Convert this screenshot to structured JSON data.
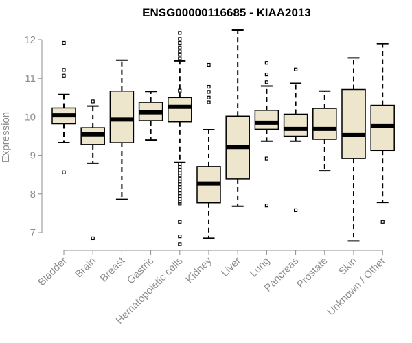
{
  "chart_data": {
    "type": "boxplot",
    "title": "ENSG00000116685 - KIAA2013",
    "xlabel": "",
    "ylabel": "Expression",
    "ylim": [
      6.6,
      12.35
    ],
    "yticks": [
      7,
      8,
      9,
      10,
      11,
      12
    ],
    "categories": [
      "Bladder",
      "Brain",
      "Breast",
      "Gastric",
      "Hematopoietic cells",
      "Kidney",
      "Liver",
      "Lung",
      "Pancreas",
      "Prostate",
      "Skin",
      "Unknown / Other"
    ],
    "boxes": [
      {
        "name": "Bladder",
        "whisker_low": 9.33,
        "q1": 9.82,
        "median": 10.04,
        "q3": 10.23,
        "whisker_high": 10.58,
        "outliers": [
          11.92,
          11.22,
          11.07,
          8.56
        ]
      },
      {
        "name": "Brain",
        "whisker_low": 8.8,
        "q1": 9.28,
        "median": 9.55,
        "q3": 9.72,
        "whisker_high": 10.28,
        "outliers": [
          10.4,
          6.85
        ]
      },
      {
        "name": "Breast",
        "whisker_low": 7.86,
        "q1": 9.33,
        "median": 9.93,
        "q3": 10.67,
        "whisker_high": 11.47,
        "outliers": []
      },
      {
        "name": "Gastric",
        "whisker_low": 9.4,
        "q1": 9.9,
        "median": 10.12,
        "q3": 10.38,
        "whisker_high": 10.66,
        "outliers": []
      },
      {
        "name": "Hematopoietic cells",
        "whisker_low": 8.82,
        "q1": 9.87,
        "median": 10.26,
        "q3": 10.5,
        "whisker_high": 11.45,
        "outliers": [
          12.18,
          12.02,
          11.92,
          11.8,
          11.7,
          11.62,
          11.52,
          10.68,
          8.78,
          8.7,
          8.62,
          8.55,
          8.48,
          8.4,
          8.32,
          8.25,
          8.18,
          8.1,
          8.02,
          7.95,
          7.88,
          7.8,
          7.75,
          7.28,
          6.9,
          6.7
        ]
      },
      {
        "name": "Kidney",
        "whisker_low": 6.85,
        "q1": 7.77,
        "median": 8.27,
        "q3": 8.71,
        "whisker_high": 9.67,
        "outliers": [
          11.35,
          10.78,
          10.65,
          10.5,
          10.38
        ]
      },
      {
        "name": "Liver",
        "whisker_low": 7.68,
        "q1": 8.39,
        "median": 9.22,
        "q3": 10.02,
        "whisker_high": 12.25,
        "outliers": []
      },
      {
        "name": "Lung",
        "whisker_low": 9.37,
        "q1": 9.68,
        "median": 9.85,
        "q3": 10.17,
        "whisker_high": 10.8,
        "outliers": [
          11.4,
          11.1,
          10.9,
          8.92,
          7.7
        ]
      },
      {
        "name": "Pancreas",
        "whisker_low": 9.37,
        "q1": 9.5,
        "median": 9.69,
        "q3": 10.07,
        "whisker_high": 10.87,
        "outliers": [
          11.23,
          7.58
        ]
      },
      {
        "name": "Prostate",
        "whisker_low": 8.6,
        "q1": 9.42,
        "median": 9.69,
        "q3": 10.22,
        "whisker_high": 10.67,
        "outliers": []
      },
      {
        "name": "Skin",
        "whisker_low": 6.78,
        "q1": 8.92,
        "median": 9.53,
        "q3": 10.71,
        "whisker_high": 11.53,
        "outliers": []
      },
      {
        "name": "Unknown / Other",
        "whisker_low": 7.78,
        "q1": 9.13,
        "median": 9.76,
        "q3": 10.3,
        "whisker_high": 11.9,
        "outliers": [
          7.28
        ]
      }
    ],
    "box_fill": "#ede6cd",
    "box_stroke": "#000000",
    "axis_color": "#8c8c8c",
    "grid": false,
    "legend": "none"
  }
}
